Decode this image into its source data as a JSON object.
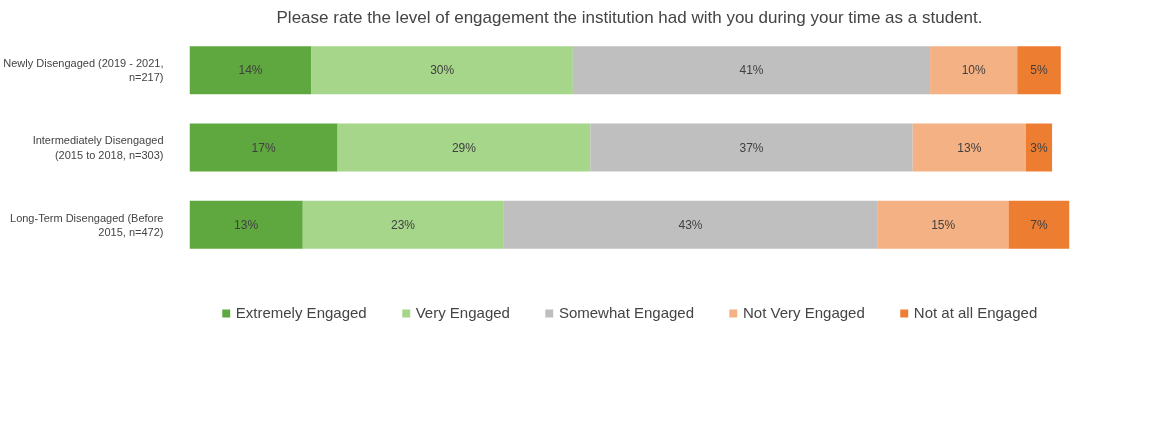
{
  "chart_data": {
    "type": "bar",
    "orientation": "horizontal",
    "stacked": true,
    "title": "Please rate the level of engagement the institution had with you during your time as a student.",
    "categories": [
      "Newly Disengaged (2019 - 2021, n=217)",
      "Intermediately Disengaged (2015 to 2018, n=303)",
      "Long-Term Disengaged (Before 2015, n=472)"
    ],
    "series": [
      {
        "name": "Extremely Engaged",
        "color": "#5fa83f",
        "values": [
          14,
          17,
          13
        ],
        "value_labels": [
          "14%",
          "17%",
          "13%"
        ]
      },
      {
        "name": "Very Engaged",
        "color": "#a5d68a",
        "values": [
          30,
          29,
          23
        ],
        "value_labels": [
          "30%",
          "29%",
          "23%"
        ]
      },
      {
        "name": "Somewhat Engaged",
        "color": "#bfbfbf",
        "values": [
          41,
          37,
          43
        ],
        "value_labels": [
          "41%",
          "37%",
          "43%"
        ]
      },
      {
        "name": "Not Very Engaged",
        "color": "#f4b183",
        "values": [
          10,
          13,
          15
        ],
        "value_labels": [
          "10%",
          "13%",
          "15%"
        ]
      },
      {
        "name": "Not at all Engaged",
        "color": "#ed7d31",
        "values": [
          5,
          3,
          7
        ],
        "value_labels": [
          "5%",
          "3%",
          "7%"
        ]
      }
    ],
    "legend": "bottom",
    "tick_labels": "y"
  }
}
